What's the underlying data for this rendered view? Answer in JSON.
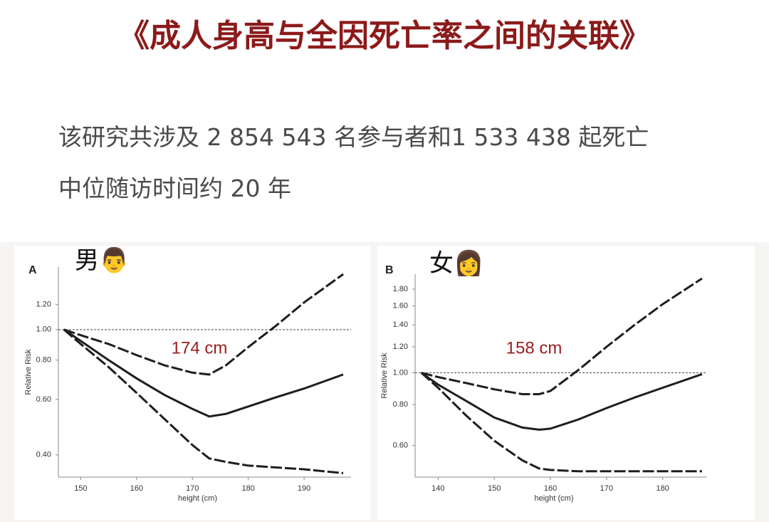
{
  "title": "《成人身高与全因死亡率之间的关联》",
  "subtitle_lines": [
    "该研究共涉及 2 854 543 名参与者和1 533 438 起死亡",
    "中位随访时间约 20 年"
  ],
  "chart_data": [
    {
      "type": "line",
      "panel": "A",
      "label": "男👨",
      "annotation": "174 cm",
      "xlabel": "height (cm)",
      "ylabel": "Relative Risk",
      "log_y": true,
      "xlim": [
        146,
        198.4
      ],
      "ylim": [
        0.34,
        1.58
      ],
      "xticks": [
        150,
        160,
        170,
        180,
        190
      ],
      "yticks": [
        {
          "value": 0.4,
          "label": "0.40"
        },
        {
          "value": 0.6,
          "label": "0.60"
        },
        {
          "value": 0.8,
          "label": "0.80"
        },
        {
          "value": 1,
          "label": "1.00"
        },
        {
          "value": 1.2,
          "label": "1.20"
        }
      ],
      "reference_line": 1,
      "x": [
        147,
        150,
        155,
        160,
        165,
        170,
        173,
        176,
        180,
        185,
        190,
        197
      ],
      "series": [
        {
          "color": "#1e1e1e",
          "style": "dashed",
          "values": [
            1.0,
            0.96,
            0.9,
            0.83,
            0.77,
            0.73,
            0.72,
            0.77,
            0.88,
            1.03,
            1.22,
            1.5
          ]
        },
        {
          "color": "#1e1e1e",
          "style": "solid",
          "values": [
            1.0,
            0.92,
            0.8,
            0.7,
            0.62,
            0.56,
            0.53,
            0.54,
            0.57,
            0.61,
            0.65,
            0.72
          ]
        },
        {
          "color": "#1e1e1e",
          "style": "dashed",
          "values": [
            1.0,
            0.9,
            0.76,
            0.63,
            0.52,
            0.43,
            0.39,
            0.38,
            0.37,
            0.365,
            0.36,
            0.35
          ]
        }
      ]
    },
    {
      "type": "line",
      "panel": "B",
      "label": "女👩",
      "annotation": "158 cm",
      "xlabel": "height (cm)",
      "ylabel": "Relative Risk",
      "log_y": true,
      "xlim": [
        135.9,
        187.9
      ],
      "ylim": [
        0.48,
        2.0
      ],
      "xticks": [
        140,
        150,
        160,
        170,
        180
      ],
      "yticks": [
        {
          "value": 0.6,
          "label": "0.60"
        },
        {
          "value": 0.8,
          "label": "0.80"
        },
        {
          "value": 1,
          "label": "1.00"
        },
        {
          "value": 1.2,
          "label": "1.20"
        },
        {
          "value": 1.4,
          "label": "1.40"
        },
        {
          "value": 1.6,
          "label": "1.60"
        },
        {
          "value": 1.8,
          "label": "1.80"
        }
      ],
      "reference_line": 1,
      "x": [
        137,
        140,
        145,
        150,
        155,
        158,
        160,
        165,
        170,
        175,
        180,
        187
      ],
      "series": [
        {
          "color": "#1e1e1e",
          "style": "dashed",
          "values": [
            1.0,
            0.97,
            0.93,
            0.89,
            0.86,
            0.86,
            0.88,
            1.02,
            1.2,
            1.4,
            1.62,
            1.94
          ]
        },
        {
          "color": "#1e1e1e",
          "style": "solid",
          "values": [
            1.0,
            0.92,
            0.82,
            0.73,
            0.68,
            0.67,
            0.675,
            0.72,
            0.78,
            0.84,
            0.9,
            0.99
          ]
        },
        {
          "color": "#1e1e1e",
          "style": "dashed",
          "values": [
            1.0,
            0.9,
            0.74,
            0.62,
            0.54,
            0.51,
            0.505,
            0.5,
            0.5,
            0.5,
            0.5,
            0.5
          ]
        }
      ]
    }
  ]
}
